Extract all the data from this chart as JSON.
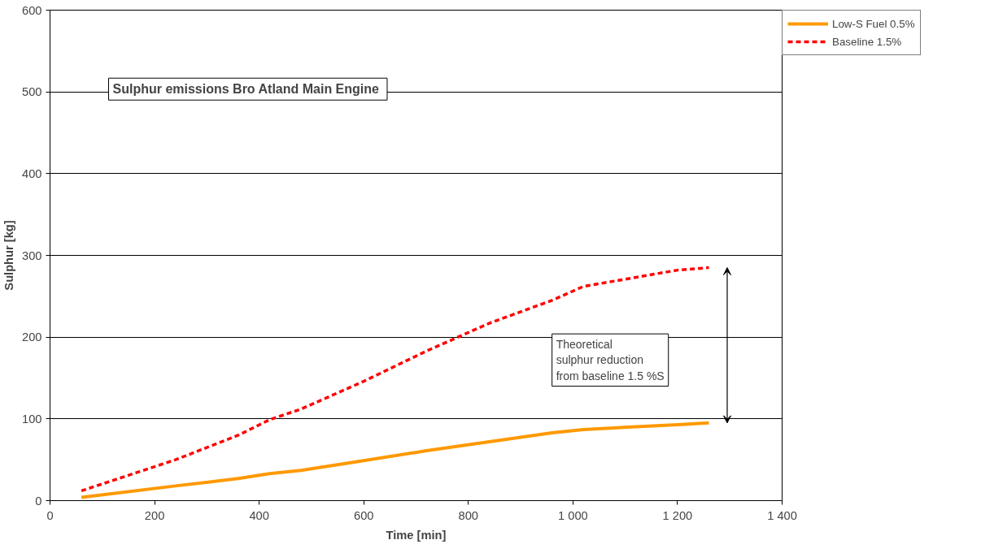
{
  "chart_data": {
    "type": "line",
    "title": "Sulphur emissions  Bro Atland Main Engine",
    "xlabel": "Time [min]",
    "ylabel": "Sulphur [kg]",
    "xlim": [
      0,
      1400
    ],
    "xticks": [
      0,
      200,
      400,
      600,
      800,
      {
        "value": 1000,
        "label": "1 000"
      },
      {
        "value": 1200,
        "label": "1 200"
      },
      {
        "value": 1400,
        "label": "1 400"
      }
    ],
    "ylim": [
      0,
      600
    ],
    "yticks": [
      0,
      100,
      200,
      300,
      400,
      500,
      600
    ],
    "grid": "y",
    "legend": "right",
    "x": [
      60,
      240,
      360,
      420,
      480,
      600,
      720,
      840,
      960,
      1020,
      1200,
      1260
    ],
    "series": [
      {
        "name": "Low-S Fuel 0.5%",
        "color": "#ff9900",
        "line_style": "solid",
        "values": [
          4,
          18,
          27,
          33,
          37,
          49,
          61,
          72,
          83,
          87,
          93,
          95
        ]
      },
      {
        "name": "Baseline 1.5%",
        "color": "#ff0000",
        "line_style": "dashed",
        "values": [
          12,
          50,
          80,
          99,
          112,
          146,
          183,
          217,
          245,
          262,
          282,
          285
        ]
      }
    ],
    "annotations": [
      "Theoretical\nsulphur reduction\nfrom baseline 1.5 %S"
    ]
  }
}
